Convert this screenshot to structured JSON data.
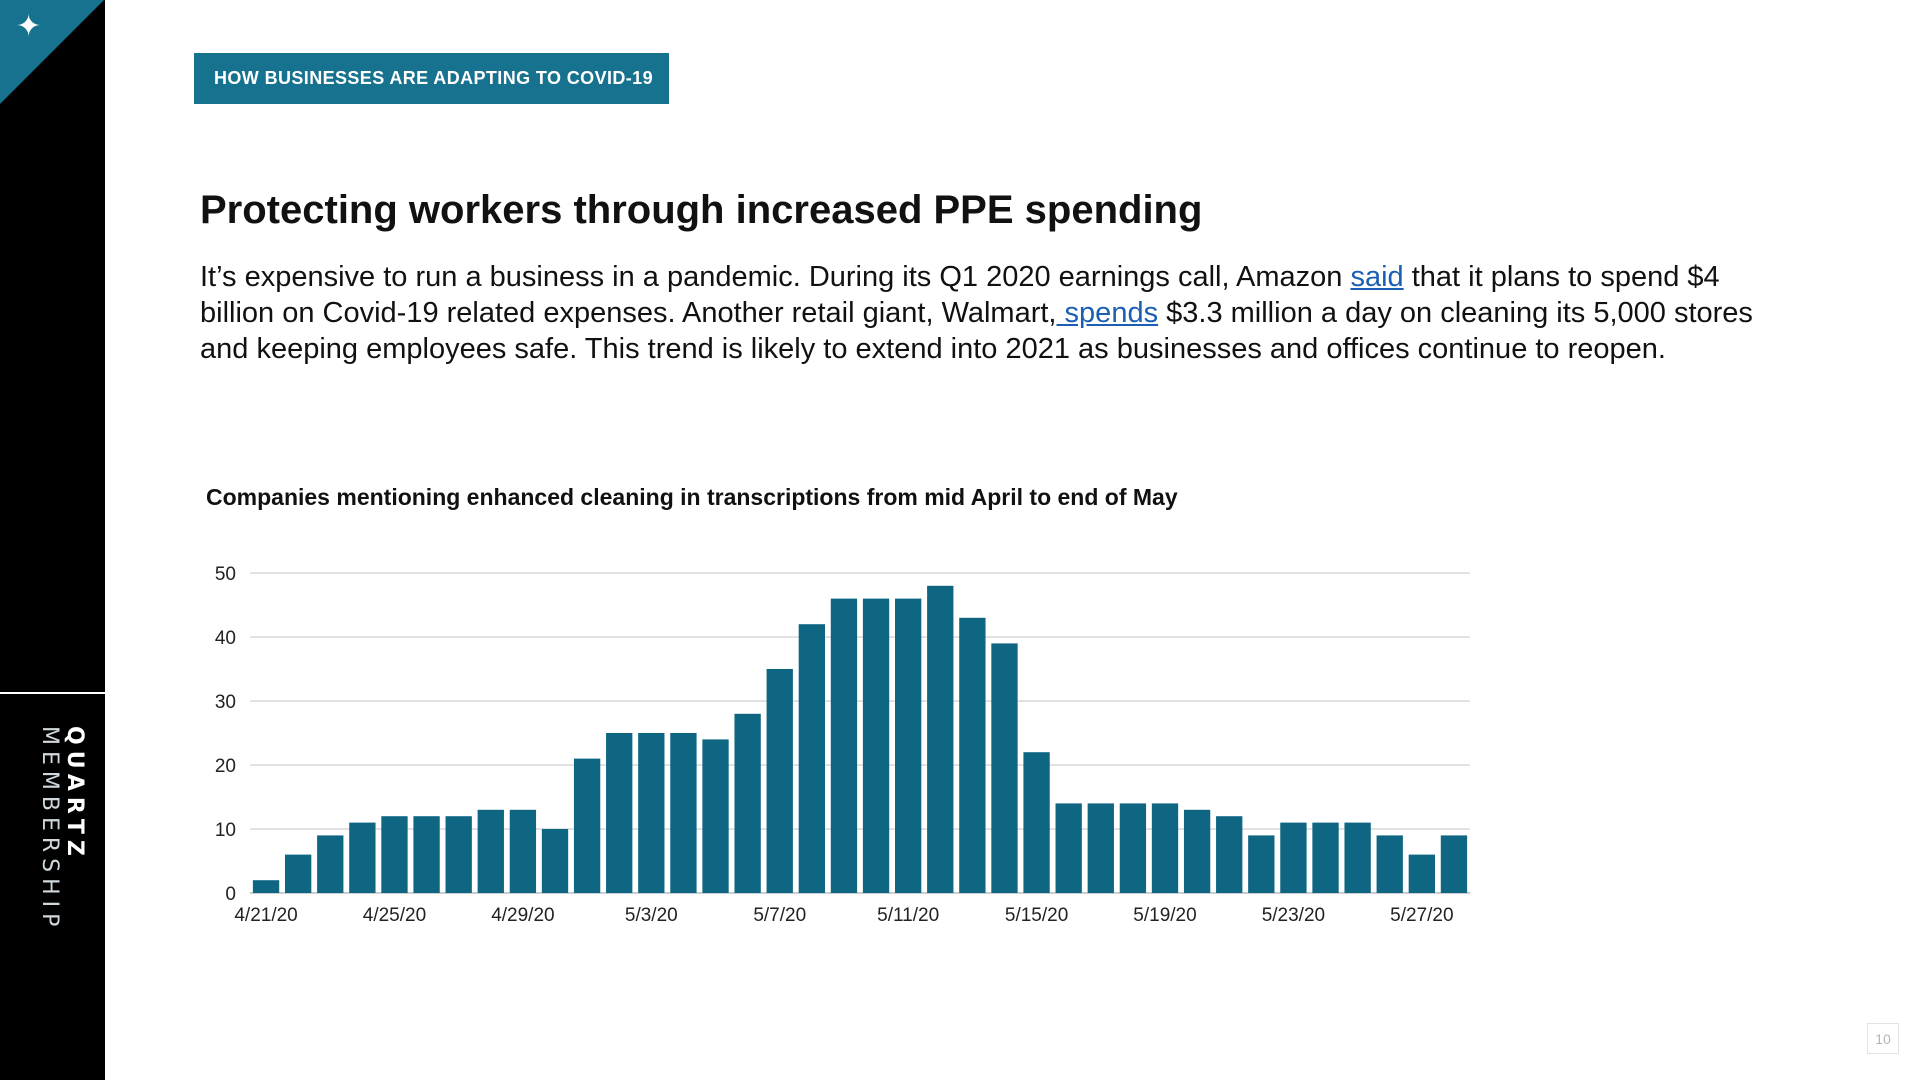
{
  "sidebar": {
    "corner_icon": "sparkle-icon",
    "corner_glyph": "✦",
    "brand_bold": "QUARTZ",
    "brand_light": "MEMBERSHIP"
  },
  "header": {
    "tag": "HOW BUSINESSES ARE ADAPTING TO COVID-19"
  },
  "main": {
    "title": "Protecting workers through increased PPE spending",
    "paragraph": {
      "part1": "It’s expensive to run a business in a pandemic. During its Q1 2020 earnings call, Amazon ",
      "link1": "said",
      "part2": " that it plans to spend $4 billion on Covid-19 related expenses. Another retail giant, Walmart,",
      "link2": " spends",
      "part3": " $3.3 million a day on cleaning its 5,000 stores and keeping employees safe. This trend is likely to extend into 2021 as businesses and offices continue to reopen."
    }
  },
  "colors": {
    "accent": "#16728f",
    "bar": "#0f6683",
    "link": "#1a5fb4"
  },
  "page_number": "10",
  "chart_data": {
    "type": "bar",
    "title": "Companies mentioning enhanced cleaning in transcriptions from mid April to end of May",
    "xlabel": "",
    "ylabel": "",
    "ylim": [
      0,
      50
    ],
    "yticks": [
      0,
      10,
      20,
      30,
      40,
      50
    ],
    "grid": true,
    "categories": [
      "4/21/20",
      "4/22/20",
      "4/23/20",
      "4/24/20",
      "4/25/20",
      "4/26/20",
      "4/27/20",
      "4/28/20",
      "4/29/20",
      "4/30/20",
      "5/1/20",
      "5/2/20",
      "5/3/20",
      "5/4/20",
      "5/5/20",
      "5/6/20",
      "5/7/20",
      "5/8/20",
      "5/9/20",
      "5/10/20",
      "5/11/20",
      "5/12/20",
      "5/13/20",
      "5/14/20",
      "5/15/20",
      "5/16/20",
      "5/17/20",
      "5/18/20",
      "5/19/20",
      "5/20/20",
      "5/21/20",
      "5/22/20",
      "5/23/20",
      "5/24/20",
      "5/25/20",
      "5/26/20",
      "5/27/20",
      "5/28/20"
    ],
    "values": [
      2,
      6,
      9,
      11,
      12,
      12,
      12,
      13,
      13,
      10,
      21,
      25,
      25,
      25,
      24,
      28,
      35,
      42,
      46,
      46,
      46,
      48,
      43,
      39,
      22,
      14,
      14,
      14,
      14,
      13,
      12,
      9,
      11,
      11,
      11,
      9,
      6,
      9
    ],
    "xtick_labels": [
      "4/21/20",
      "4/25/20",
      "4/29/20",
      "5/3/20",
      "5/7/20",
      "5/11/20",
      "5/15/20",
      "5/19/20",
      "5/23/20",
      "5/27/20"
    ]
  }
}
